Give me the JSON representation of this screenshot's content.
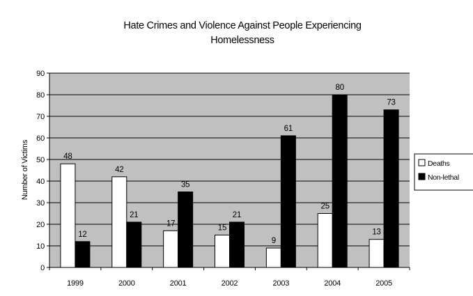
{
  "chart_data": {
    "type": "bar",
    "title_lines": [
      "Hate Crimes and Violence Against People Experiencing",
      "Homelessness"
    ],
    "xlabel": "",
    "ylabel": "Number of Victims",
    "categories": [
      "1999",
      "2000",
      "2001",
      "2002",
      "2003",
      "2004",
      "2005"
    ],
    "series": [
      {
        "name": "Deaths",
        "values": [
          48,
          42,
          17,
          15,
          9,
          25,
          13
        ],
        "color": "#ffffff"
      },
      {
        "name": "Non-lethal",
        "values": [
          12,
          21,
          35,
          21,
          61,
          80,
          73
        ],
        "color": "#000000"
      }
    ],
    "ylim": [
      0,
      90
    ],
    "yticks": [
      0,
      10,
      20,
      30,
      40,
      50,
      60,
      70,
      80,
      90
    ],
    "grid": true,
    "plot_background": "#c0c0c0",
    "legend_position": "right",
    "legend_labels": [
      "Deaths",
      "Non-lethal"
    ]
  }
}
